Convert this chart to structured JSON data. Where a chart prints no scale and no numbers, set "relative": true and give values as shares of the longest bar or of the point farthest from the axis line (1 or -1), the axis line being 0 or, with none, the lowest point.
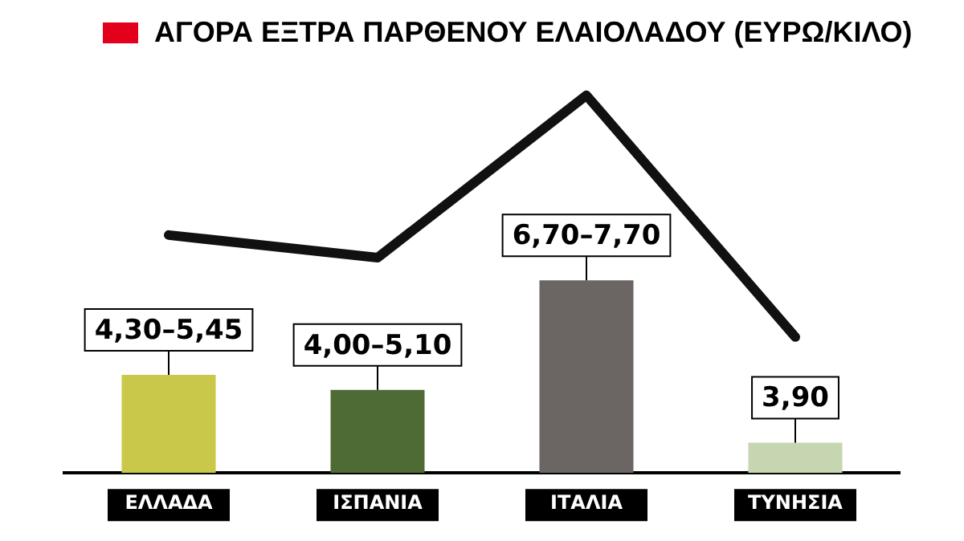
{
  "chart_data": {
    "type": "bar",
    "title": "ΑΓΟΡΑ ΕΞΤΡΑ ΠΑΡΘΕΝΟΥ ΕΛΑΙΟΛΑΔΟΥ (ΕΥΡΩ/ΚΙΛΟ)",
    "categories": [
      "ΕΛΛΑΔΑ",
      "ΙΣΠΑΝΙΑ",
      "ΙΤΑΛΙΑ",
      "ΤΥΝΗΣΙΑ"
    ],
    "relative": true,
    "legend": false,
    "grid": false,
    "marker": "none",
    "annotations": [
      "4,30–5,45",
      "4,00–5,10",
      "6,70–7,70",
      "3,90"
    ],
    "series": [
      {
        "colors": [
          "#c9c84a",
          "#4e6a35",
          "#6b6563",
          "#c5d6b0"
        ],
        "values": [
          0.26,
          0.22,
          0.51,
          0.08
        ]
      },
      {
        "type": "line",
        "color": "#111111",
        "values": [
          0.63,
          0.57,
          1,
          0.36
        ]
      }
    ]
  }
}
